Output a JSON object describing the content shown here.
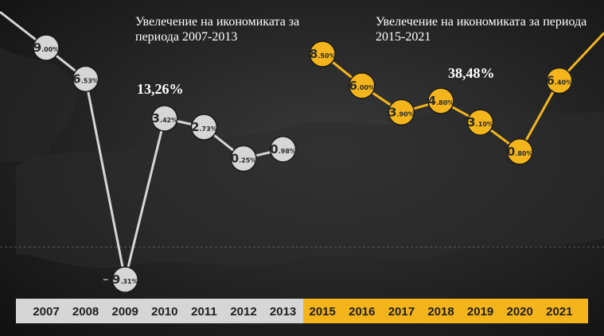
{
  "annotations": {
    "period1_label": "Увелечение на икономиката за периода 2007-2013",
    "period1_value": "13,26%",
    "period2_label": "Увелечение на икономиката за периода 2015-2021",
    "period2_value": "38,48%"
  },
  "colors": {
    "background": "#1c1c1c",
    "period1": "#d6d6d6",
    "period2": "#f3b51b",
    "label_text": "#2a2a2a"
  },
  "chart_data": {
    "type": "line",
    "title": "",
    "xlabel": "",
    "ylabel": "",
    "categories": [
      "2007",
      "2008",
      "2009",
      "2010",
      "2011",
      "2012",
      "2013",
      "2015",
      "2016",
      "2017",
      "2018",
      "2019",
      "2020",
      "2021"
    ],
    "series": [
      {
        "period": "2007-2013",
        "x": [
          "2007",
          "2008",
          "2009",
          "2010",
          "2011",
          "2012",
          "2013"
        ],
        "values": [
          9.0,
          6.53,
          -9.31,
          3.42,
          2.73,
          0.25,
          0.98
        ],
        "labels": [
          {
            "int": "9",
            "dec": ".00%"
          },
          {
            "int": "6",
            "dec": ".53%"
          },
          {
            "int": "9",
            "dec": ".31%",
            "sign": "–"
          },
          {
            "int": "3",
            "dec": ".42%"
          },
          {
            "int": "2",
            "dec": ".73%"
          },
          {
            "int": "0",
            "dec": ".25%"
          },
          {
            "int": "0",
            "dec": ".98%"
          }
        ]
      },
      {
        "period": "2015-2021",
        "x": [
          "2015",
          "2016",
          "2017",
          "2018",
          "2019",
          "2020",
          "2021"
        ],
        "values": [
          8.5,
          6.0,
          3.9,
          4.8,
          3.1,
          0.8,
          6.4
        ],
        "labels": [
          {
            "int": "8",
            "dec": ".50%"
          },
          {
            "int": "6",
            "dec": ".00%"
          },
          {
            "int": "3",
            "dec": ".90%"
          },
          {
            "int": "4",
            "dec": ".80%"
          },
          {
            "int": "3",
            "dec": ".10%"
          },
          {
            "int": "0",
            "dec": ".80%"
          },
          {
            "int": "6",
            "dec": ".40%"
          }
        ]
      }
    ],
    "ylim": [
      -9.31,
      9.0
    ],
    "grid": false,
    "legend": "none"
  }
}
